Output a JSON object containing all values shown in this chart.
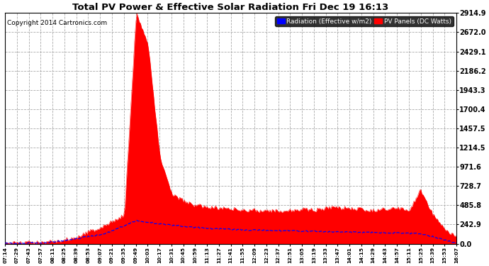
{
  "title": "Total PV Power & Effective Solar Radiation Fri Dec 19 16:13",
  "copyright": "Copyright 2014 Cartronics.com",
  "legend_blue": "Radiation (Effective w/m2)",
  "legend_red": "PV Panels (DC Watts)",
  "background_color": "#ffffff",
  "plot_bg_color": "#ffffff",
  "y_ticks": [
    0.0,
    242.9,
    485.8,
    728.7,
    971.6,
    1214.5,
    1457.5,
    1700.4,
    1943.3,
    2186.2,
    2429.1,
    2672.0,
    2914.9
  ],
  "y_max": 2914.9,
  "grid_color": "#aaaaaa",
  "x_tick_labels": [
    "07:14",
    "07:29",
    "07:43",
    "07:57",
    "08:11",
    "08:25",
    "08:39",
    "08:53",
    "09:07",
    "09:21",
    "09:35",
    "09:49",
    "10:03",
    "10:17",
    "10:31",
    "10:45",
    "10:59",
    "11:13",
    "11:27",
    "11:41",
    "11:55",
    "12:09",
    "12:23",
    "12:37",
    "12:51",
    "13:05",
    "13:19",
    "13:33",
    "13:47",
    "14:01",
    "14:15",
    "14:29",
    "14:43",
    "14:57",
    "15:11",
    "15:25",
    "15:39",
    "15:53",
    "16:07"
  ]
}
